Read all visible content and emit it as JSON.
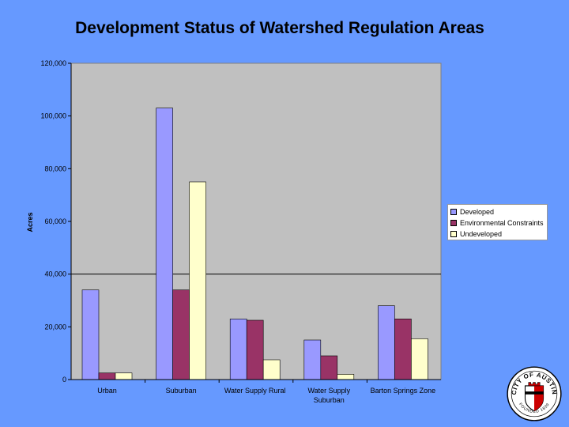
{
  "title": "Development Status of Watershed Regulation Areas",
  "chart_data": {
    "type": "bar",
    "title": "Development Status of Watershed Regulation Areas",
    "ylabel": "Acres",
    "xlabel": "",
    "ylim": [
      0,
      120000
    ],
    "yticks": [
      0,
      20000,
      40000,
      60000,
      80000,
      100000,
      120000
    ],
    "ytick_labels": [
      "0",
      "20,000",
      "40,000",
      "60,000",
      "80,000",
      "100,000",
      "120,000"
    ],
    "categories": [
      [
        "Urban"
      ],
      [
        "Suburban"
      ],
      [
        "Water Supply Rural"
      ],
      [
        "Water Supply",
        "Suburban"
      ],
      [
        "Barton Springs Zone"
      ]
    ],
    "series": [
      {
        "name": "Developed",
        "color": "#9999ff",
        "values": [
          34000,
          103000,
          23000,
          15000,
          28000
        ]
      },
      {
        "name": "Environmental Constraints",
        "color": "#993366",
        "values": [
          2500,
          34000,
          22500,
          9000,
          23000
        ]
      },
      {
        "name": "Undeveloped",
        "color": "#ffffcc",
        "values": [
          2500,
          75000,
          7500,
          2000,
          15500
        ]
      }
    ],
    "gridlines": [
      40000
    ],
    "grid": false,
    "legend_position": "right",
    "plot_background": "#c0c0c0"
  },
  "logo": {
    "icon": "city-of-austin-seal-icon",
    "text_top": "CITY OF AUSTIN",
    "text_bottom": "FOUNDED 1839"
  }
}
